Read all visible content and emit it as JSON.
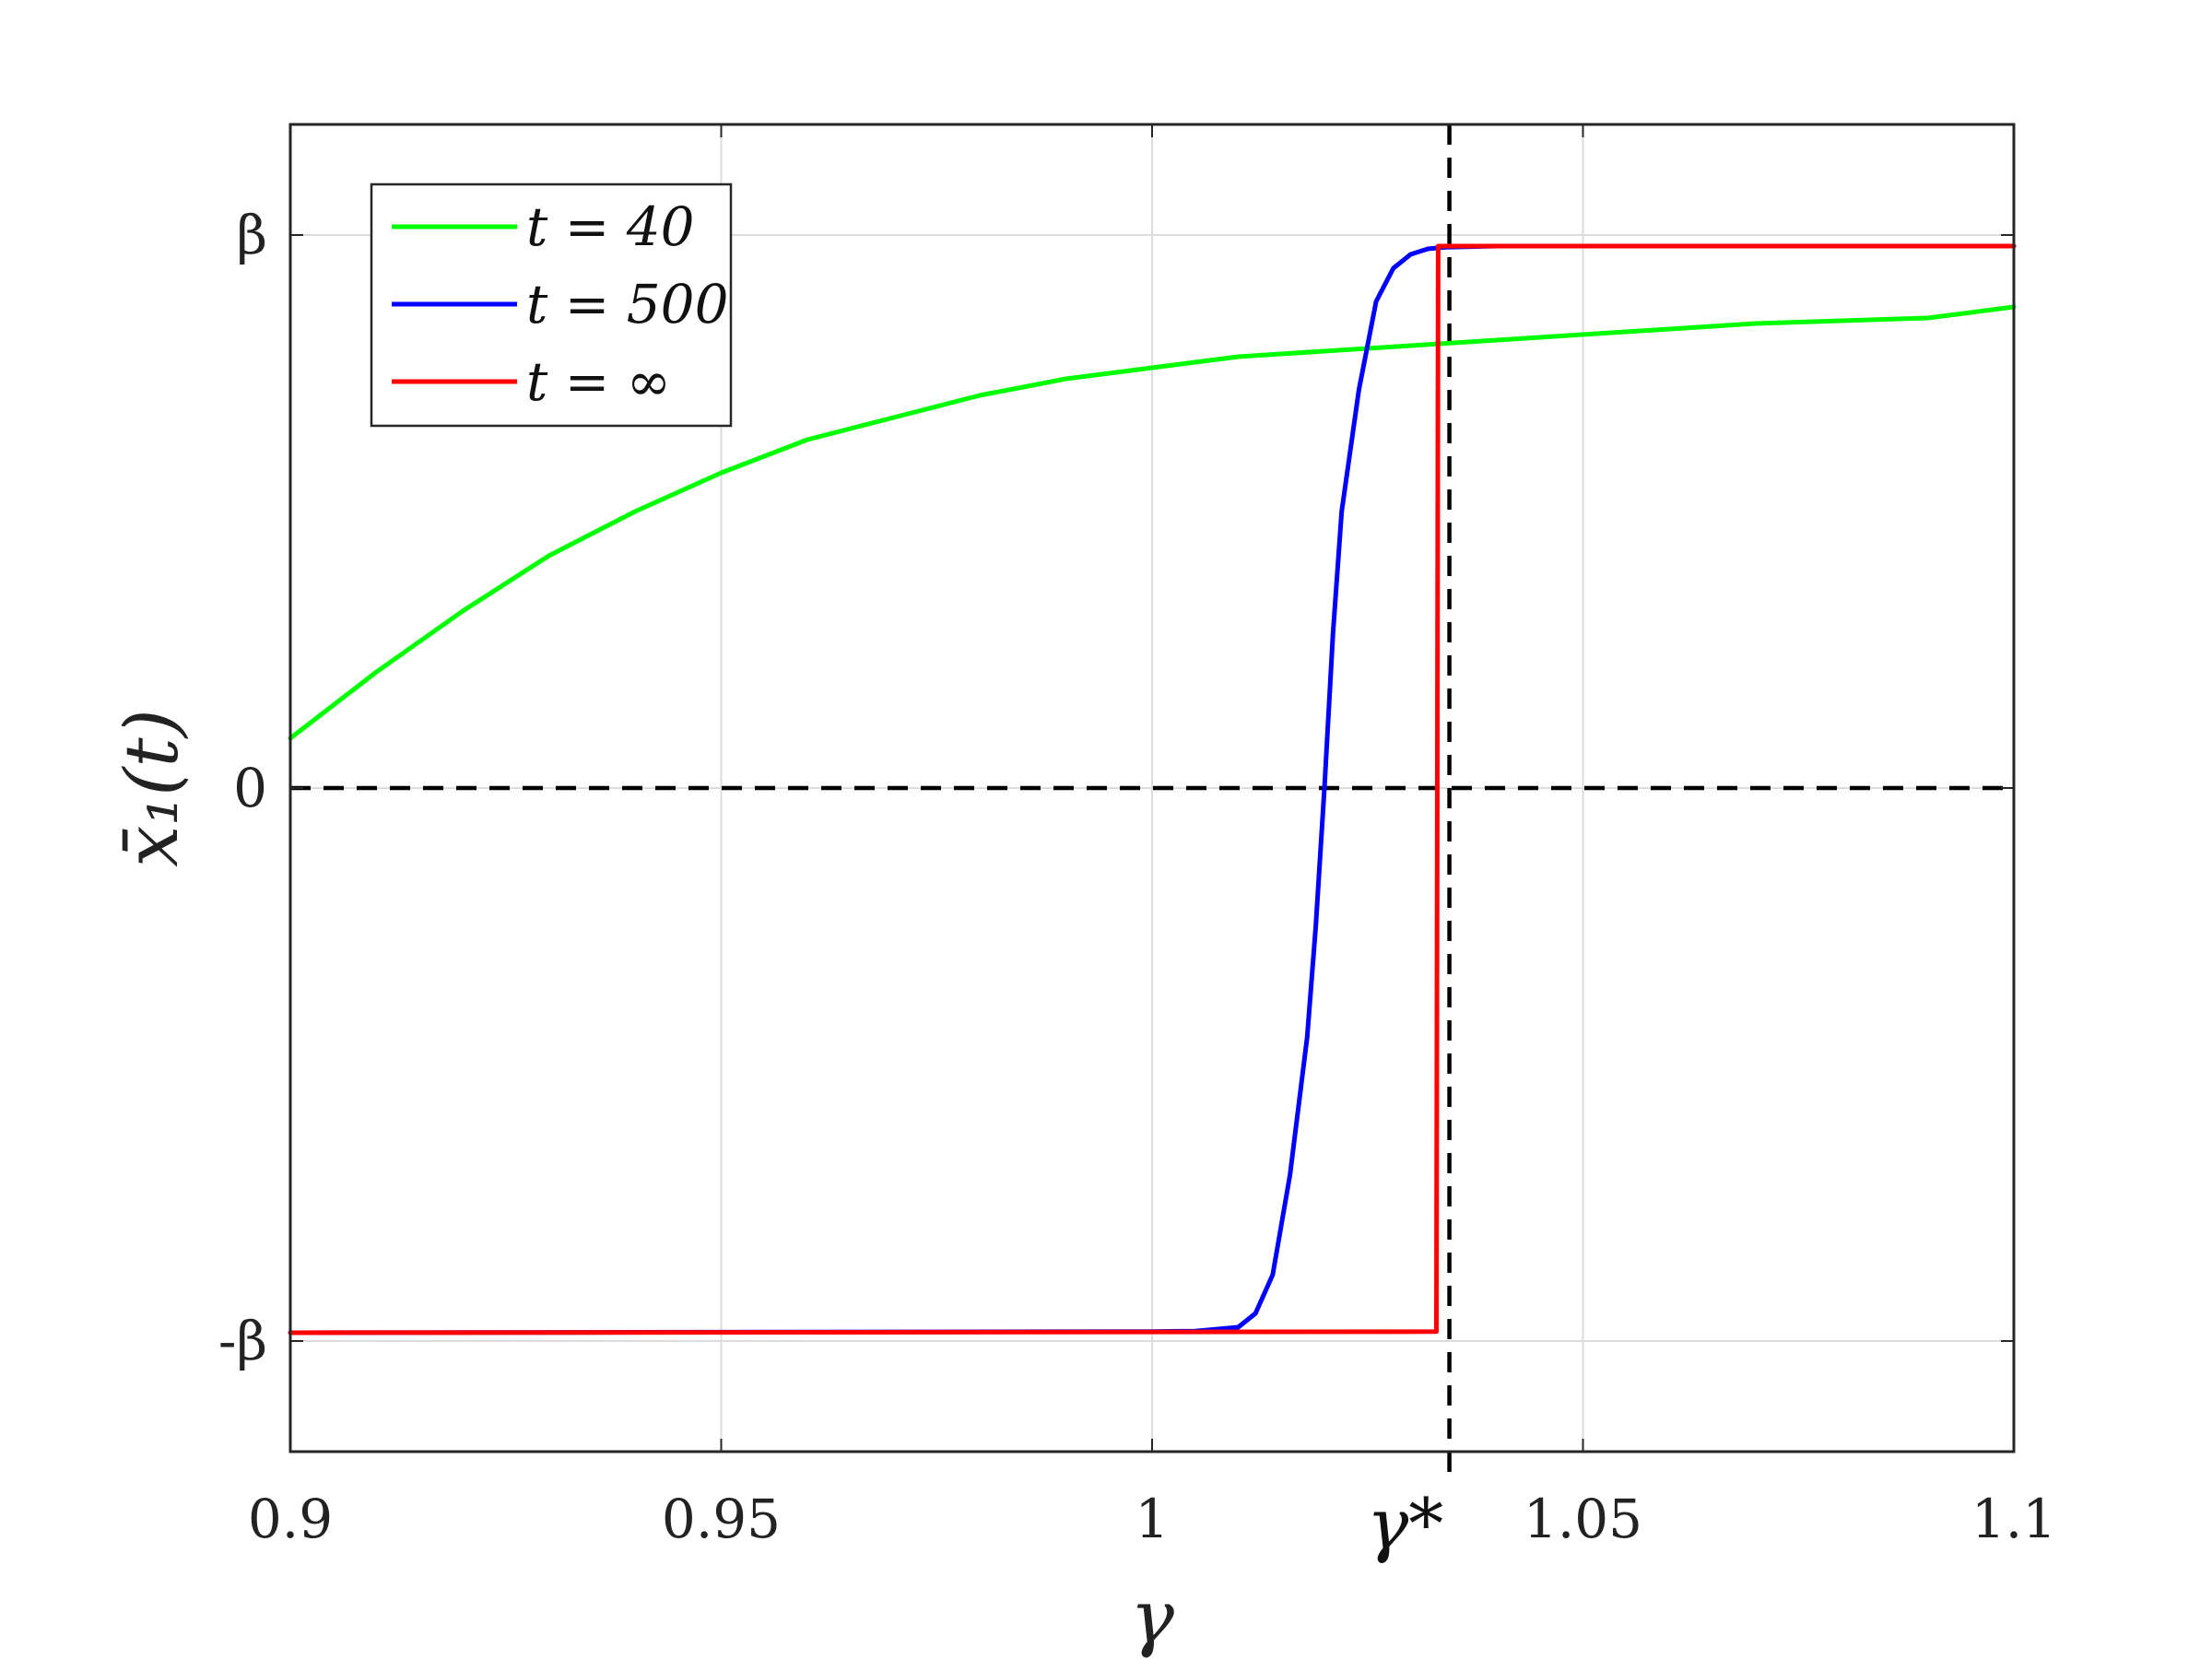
{
  "chart_data": {
    "type": "line",
    "title": "",
    "xlabel": "γ",
    "ylabel": "x̄₁(t)",
    "xlim": [
      0.9,
      1.1
    ],
    "ylim": [
      -1.2,
      1.2
    ],
    "x_ticks": [
      0.9,
      0.95,
      1.0,
      1.05,
      1.1
    ],
    "x_tick_labels": [
      "0.9",
      "0.95",
      "1",
      "1.05",
      "1.1"
    ],
    "y_ticks": [
      -1,
      0,
      1
    ],
    "y_tick_labels": [
      "-β",
      "0",
      "β"
    ],
    "grid": true,
    "legend_position": "top-left",
    "annotation": {
      "label": "γ*",
      "x": 1.0345
    },
    "reference_lines": [
      {
        "orientation": "horizontal",
        "value": 0,
        "style": "dashed",
        "color": "#000000"
      },
      {
        "orientation": "vertical",
        "value": 1.0345,
        "style": "dashed",
        "color": "#000000"
      }
    ],
    "series": [
      {
        "name": "t = 40",
        "color": "#00ff00",
        "x": [
          0.9,
          0.91,
          0.92,
          0.93,
          0.94,
          0.95,
          0.96,
          0.97,
          0.98,
          0.99,
          1.0,
          1.01,
          1.02,
          1.03,
          1.04,
          1.05,
          1.06,
          1.07,
          1.08,
          1.09,
          1.1
        ],
        "y": [
          0.09,
          0.21,
          0.32,
          0.42,
          0.5,
          0.57,
          0.63,
          0.67,
          0.71,
          0.74,
          0.76,
          0.78,
          0.79,
          0.8,
          0.81,
          0.82,
          0.83,
          0.84,
          0.845,
          0.85,
          0.87
        ]
      },
      {
        "name": "t = 500",
        "color": "#0000ff",
        "x": [
          0.9,
          0.95,
          1.0,
          1.005,
          1.01,
          1.012,
          1.014,
          1.016,
          1.018,
          1.019,
          1.02,
          1.021,
          1.022,
          1.024,
          1.026,
          1.028,
          1.03,
          1.032,
          1.034,
          1.04,
          1.05,
          1.1
        ],
        "y": [
          -0.985,
          -0.984,
          -0.983,
          -0.982,
          -0.975,
          -0.95,
          -0.88,
          -0.7,
          -0.45,
          -0.25,
          0.0,
          0.28,
          0.5,
          0.72,
          0.88,
          0.94,
          0.965,
          0.975,
          0.978,
          0.98,
          0.98,
          0.98
        ]
      },
      {
        "name": "t = ∞",
        "color": "#ff0000",
        "x": [
          0.9,
          1.033,
          1.0332,
          1.1
        ],
        "y": [
          -0.985,
          -0.983,
          0.98,
          0.98
        ]
      }
    ]
  }
}
